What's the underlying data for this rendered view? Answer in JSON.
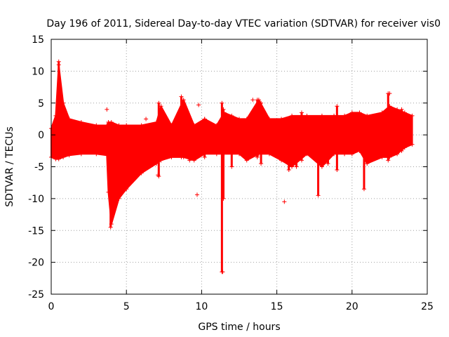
{
  "chart_data": {
    "type": "scatter",
    "title": "Day 196 of 2011, Sidereal Day-to-day VTEC variation (SDTVAR) for receiver vis0",
    "xlabel": "GPS time / hours",
    "ylabel": "SDTVAR / TECUs",
    "xlim": [
      0,
      25
    ],
    "ylim": [
      -25,
      15
    ],
    "xticks": [
      0,
      5,
      10,
      15,
      20,
      25
    ],
    "yticks": [
      -25,
      -20,
      -15,
      -10,
      -5,
      0,
      5,
      10,
      15
    ],
    "grid": true,
    "marker": "+",
    "series_color": "#ff0000",
    "band": [
      {
        "x": 0.0,
        "lo": -3.5,
        "hi": 1.0
      },
      {
        "x": 0.3,
        "lo": -3.8,
        "hi": 3.0
      },
      {
        "x": 0.5,
        "lo": -3.8,
        "hi": 11.0
      },
      {
        "x": 0.8,
        "lo": -3.5,
        "hi": 5.0
      },
      {
        "x": 1.2,
        "lo": -3.2,
        "hi": 2.5
      },
      {
        "x": 2.0,
        "lo": -3.0,
        "hi": 2.0
      },
      {
        "x": 3.0,
        "lo": -3.0,
        "hi": 1.5
      },
      {
        "x": 3.7,
        "lo": -3.2,
        "hi": 1.5
      },
      {
        "x": 3.8,
        "lo": -9.0,
        "hi": 2.0
      },
      {
        "x": 4.0,
        "lo": -14.0,
        "hi": 2.0
      },
      {
        "x": 4.5,
        "lo": -10.0,
        "hi": 1.5
      },
      {
        "x": 5.0,
        "lo": -8.5,
        "hi": 1.5
      },
      {
        "x": 6.0,
        "lo": -6.0,
        "hi": 1.5
      },
      {
        "x": 7.0,
        "lo": -4.5,
        "hi": 2.0
      },
      {
        "x": 7.3,
        "lo": -4.0,
        "hi": 4.5
      },
      {
        "x": 8.0,
        "lo": -3.5,
        "hi": 1.5
      },
      {
        "x": 8.8,
        "lo": -3.5,
        "hi": 5.5
      },
      {
        "x": 9.5,
        "lo": -4.0,
        "hi": 1.5
      },
      {
        "x": 10.2,
        "lo": -3.0,
        "hi": 2.5
      },
      {
        "x": 11.0,
        "lo": -3.0,
        "hi": 1.5
      },
      {
        "x": 11.5,
        "lo": -3.0,
        "hi": 3.5
      },
      {
        "x": 12.5,
        "lo": -3.0,
        "hi": 2.5
      },
      {
        "x": 13.0,
        "lo": -4.0,
        "hi": 2.5
      },
      {
        "x": 13.8,
        "lo": -3.0,
        "hi": 5.5
      },
      {
        "x": 14.5,
        "lo": -3.0,
        "hi": 2.5
      },
      {
        "x": 15.3,
        "lo": -4.0,
        "hi": 2.5
      },
      {
        "x": 16.0,
        "lo": -5.0,
        "hi": 3.0
      },
      {
        "x": 17.0,
        "lo": -3.0,
        "hi": 3.0
      },
      {
        "x": 18.0,
        "lo": -5.0,
        "hi": 3.0
      },
      {
        "x": 18.8,
        "lo": -3.0,
        "hi": 3.0
      },
      {
        "x": 19.5,
        "lo": -3.0,
        "hi": 3.0
      },
      {
        "x": 20.0,
        "lo": -3.0,
        "hi": 3.5
      },
      {
        "x": 20.5,
        "lo": -2.5,
        "hi": 3.5
      },
      {
        "x": 21.0,
        "lo": -4.5,
        "hi": 3.0
      },
      {
        "x": 22.0,
        "lo": -3.5,
        "hi": 3.5
      },
      {
        "x": 22.5,
        "lo": -3.5,
        "hi": 4.5
      },
      {
        "x": 23.0,
        "lo": -3.0,
        "hi": 4.0
      },
      {
        "x": 23.5,
        "lo": -2.0,
        "hi": 3.5
      },
      {
        "x": 24.0,
        "lo": -1.5,
        "hi": 3.0
      }
    ],
    "spikes": [
      {
        "x": 0.5,
        "lo": -3.5,
        "hi": 11.5
      },
      {
        "x": 3.95,
        "lo": -14.5,
        "hi": 1.5
      },
      {
        "x": 7.15,
        "lo": -6.5,
        "hi": 5.0
      },
      {
        "x": 8.65,
        "lo": -3.5,
        "hi": 6.0
      },
      {
        "x": 9.2,
        "lo": -4.0,
        "hi": 2.0
      },
      {
        "x": 10.2,
        "lo": -3.5,
        "hi": 2.5
      },
      {
        "x": 11.35,
        "lo": -21.5,
        "hi": 5.0
      },
      {
        "x": 11.45,
        "lo": -10.0,
        "hi": 4.0
      },
      {
        "x": 12.0,
        "lo": -5.0,
        "hi": 3.0
      },
      {
        "x": 13.7,
        "lo": -3.5,
        "hi": 5.5
      },
      {
        "x": 13.95,
        "lo": -4.5,
        "hi": 5.0
      },
      {
        "x": 15.8,
        "lo": -5.5,
        "hi": 1.5
      },
      {
        "x": 16.3,
        "lo": -5.0,
        "hi": 1.0
      },
      {
        "x": 16.65,
        "lo": -4.0,
        "hi": 3.5
      },
      {
        "x": 17.75,
        "lo": -9.5,
        "hi": 2.0
      },
      {
        "x": 18.4,
        "lo": -4.5,
        "hi": 2.5
      },
      {
        "x": 19.0,
        "lo": -5.5,
        "hi": 4.5
      },
      {
        "x": 20.8,
        "lo": -8.5,
        "hi": 2.5
      },
      {
        "x": 22.4,
        "lo": -4.0,
        "hi": 6.5
      },
      {
        "x": 23.3,
        "lo": -2.5,
        "hi": 4.0
      }
    ],
    "outliers": [
      {
        "x": 3.7,
        "y": 4.0
      },
      {
        "x": 6.3,
        "y": 2.5
      },
      {
        "x": 7.1,
        "y": -6.3
      },
      {
        "x": 9.8,
        "y": 4.7
      },
      {
        "x": 9.7,
        "y": -9.4
      },
      {
        "x": 11.4,
        "y": -21.5
      },
      {
        "x": 13.4,
        "y": 5.5
      },
      {
        "x": 15.5,
        "y": -10.5
      },
      {
        "x": 22.5,
        "y": 6.5
      }
    ]
  }
}
